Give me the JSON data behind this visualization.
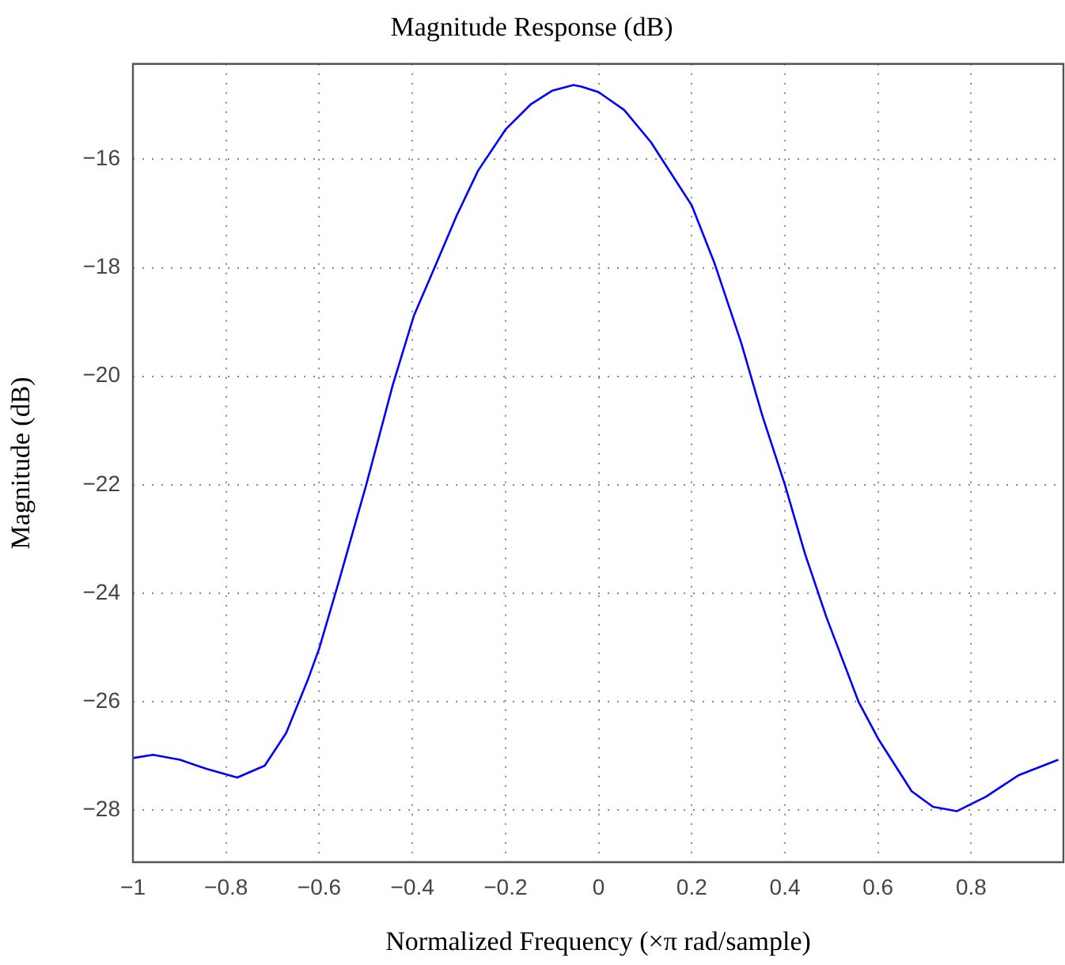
{
  "chart_data": {
    "type": "line",
    "title": "Magnitude Response (dB)",
    "xlabel": "Normalized Frequency (×π rad/sample)",
    "ylabel": "Magnitude (dB)",
    "x": [
      -1,
      -0.957,
      -0.899,
      -0.842,
      -0.776,
      -0.717,
      -0.671,
      -0.625,
      -0.6,
      -0.557,
      -0.499,
      -0.442,
      -0.397,
      -0.351,
      -0.305,
      -0.259,
      -0.199,
      -0.145,
      -0.099,
      -0.054,
      -0.037,
      0,
      0.055,
      0.112,
      0.2,
      0.249,
      0.306,
      0.352,
      0.4,
      0.443,
      0.489,
      0.558,
      0.6,
      0.672,
      0.718,
      0.769,
      0.832,
      0.901,
      0.987
    ],
    "values": [
      -27.04,
      -26.98,
      -27.07,
      -27.24,
      -27.4,
      -27.18,
      -26.58,
      -25.61,
      -25.02,
      -23.76,
      -22.0,
      -20.16,
      -18.89,
      -17.97,
      -17.04,
      -16.21,
      -15.44,
      -14.98,
      -14.73,
      -14.63,
      -14.66,
      -14.76,
      -15.09,
      -15.68,
      -16.85,
      -17.92,
      -19.38,
      -20.74,
      -22.0,
      -23.27,
      -24.44,
      -26.0,
      -26.68,
      -27.65,
      -27.94,
      -28.02,
      -27.75,
      -27.36,
      -27.07
    ],
    "color": "#0000ff",
    "xlim": [
      -1,
      0.998
    ],
    "ylim": [
      -28.96,
      -14.24
    ],
    "xticks": [
      -1,
      -0.8,
      -0.6,
      -0.4,
      -0.2,
      0,
      0.2,
      0.4,
      0.6,
      0.8
    ],
    "yticks": [
      -28,
      -26,
      -24,
      -22,
      -20,
      -18,
      -16
    ],
    "grid": true,
    "line_style": "solid"
  }
}
